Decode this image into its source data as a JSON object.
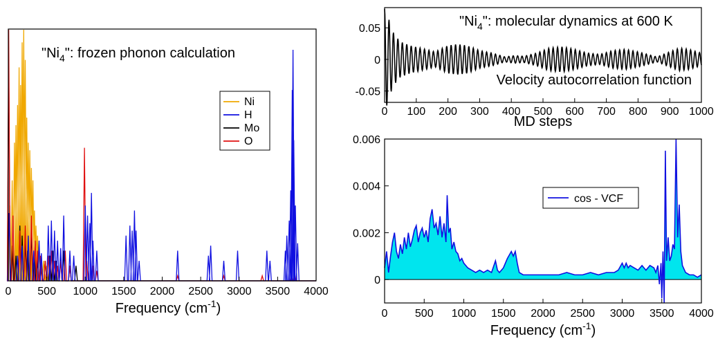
{
  "chart_data": [
    {
      "type": "line",
      "panel": "left",
      "title": "\"Ni4\": frozen phonon calculation",
      "title_parts": {
        "pre": "\"Ni",
        "sub": "4",
        "post": "\": frozen phonon calculation"
      },
      "xlabel": "Frequency (cm-1)",
      "xlabel_parts": {
        "pre": "Frequency (cm",
        "sup": "-1",
        "post": ")"
      },
      "ylabel": "",
      "xlim": [
        0,
        4000
      ],
      "ylim": [
        0,
        1
      ],
      "xticks": [
        0,
        500,
        1000,
        1500,
        2000,
        2500,
        3000,
        3500,
        4000
      ],
      "yticks": [],
      "legend_position": "center-right",
      "series": [
        {
          "name": "Ni",
          "color": "#f0a800",
          "peaks": [
            [
              20,
              0.3
            ],
            [
              50,
              0.4
            ],
            [
              80,
              0.55
            ],
            [
              100,
              0.62
            ],
            [
              120,
              0.7
            ],
            [
              140,
              0.85
            ],
            [
              160,
              0.78
            ],
            [
              180,
              0.95
            ],
            [
              200,
              1.0
            ],
            [
              220,
              0.88
            ],
            [
              240,
              0.65
            ],
            [
              260,
              0.55
            ],
            [
              280,
              0.52
            ],
            [
              300,
              0.45
            ],
            [
              320,
              0.4
            ],
            [
              340,
              0.28
            ],
            [
              360,
              0.22
            ],
            [
              380,
              0.18
            ],
            [
              400,
              0.12
            ],
            [
              430,
              0.1
            ],
            [
              460,
              0.08
            ],
            [
              500,
              0.06
            ]
          ]
        },
        {
          "name": "H",
          "color": "#1010e0",
          "peaks": [
            [
              10,
              0.27
            ],
            [
              120,
              0.1
            ],
            [
              180,
              0.14
            ],
            [
              260,
              0.18
            ],
            [
              330,
              0.12
            ],
            [
              400,
              0.16
            ],
            [
              430,
              0.11
            ],
            [
              520,
              0.22
            ],
            [
              560,
              0.24
            ],
            [
              600,
              0.2
            ],
            [
              640,
              0.16
            ],
            [
              680,
              0.13
            ],
            [
              720,
              0.26
            ],
            [
              800,
              0.12
            ],
            [
              850,
              0.1
            ],
            [
              1000,
              0.3
            ],
            [
              1030,
              0.26
            ],
            [
              1060,
              0.23
            ],
            [
              1080,
              0.35
            ],
            [
              1100,
              0.16
            ],
            [
              1150,
              0.12
            ],
            [
              1530,
              0.18
            ],
            [
              1580,
              0.22
            ],
            [
              1610,
              0.2
            ],
            [
              1640,
              0.28
            ],
            [
              1660,
              0.2
            ],
            [
              1700,
              0.08
            ],
            [
              2200,
              0.12
            ],
            [
              2600,
              0.1
            ],
            [
              2630,
              0.14
            ],
            [
              2800,
              0.08
            ],
            [
              2980,
              0.12
            ],
            [
              3360,
              0.12
            ],
            [
              3400,
              0.08
            ],
            [
              3600,
              0.12
            ],
            [
              3620,
              0.18
            ],
            [
              3650,
              0.24
            ],
            [
              3670,
              0.36
            ],
            [
              3690,
              0.76
            ],
            [
              3700,
              0.92
            ],
            [
              3710,
              0.56
            ],
            [
              3730,
              0.3
            ],
            [
              3760,
              0.15
            ]
          ]
        },
        {
          "name": "Mo",
          "color": "#000000",
          "peaks": [
            [
              5,
              0.88
            ],
            [
              50,
              0.14
            ],
            [
              100,
              0.1
            ],
            [
              150,
              0.22
            ],
            [
              180,
              0.18
            ],
            [
              220,
              0.16
            ],
            [
              250,
              0.12
            ],
            [
              300,
              0.2
            ],
            [
              340,
              0.1
            ],
            [
              380,
              0.08
            ],
            [
              430,
              0.06
            ],
            [
              480,
              0.08
            ],
            [
              540,
              0.1
            ],
            [
              580,
              0.12
            ],
            [
              620,
              0.08
            ],
            [
              680,
              0.1
            ],
            [
              720,
              0.12
            ],
            [
              800,
              0.06
            ],
            [
              880,
              0.06
            ]
          ]
        },
        {
          "name": "O",
          "color": "#e01010",
          "peaks": [
            [
              5,
              1.0
            ],
            [
              60,
              0.26
            ],
            [
              150,
              0.2
            ],
            [
              220,
              0.22
            ],
            [
              300,
              0.26
            ],
            [
              350,
              0.16
            ],
            [
              380,
              0.12
            ],
            [
              420,
              0.1
            ],
            [
              480,
              0.08
            ],
            [
              520,
              0.1
            ],
            [
              560,
              0.12
            ],
            [
              600,
              0.08
            ],
            [
              640,
              0.06
            ],
            [
              680,
              0.08
            ],
            [
              740,
              0.12
            ],
            [
              800,
              0.06
            ],
            [
              990,
              0.53
            ],
            [
              1020,
              0.08
            ],
            [
              1100,
              0.06
            ],
            [
              1150,
              0.04
            ],
            [
              2200,
              0.02
            ],
            [
              2800,
              0.02
            ],
            [
              3300,
              0.02
            ],
            [
              3680,
              0.03
            ],
            [
              3720,
              0.03
            ]
          ]
        }
      ],
      "legend_entries": [
        "Ni",
        "H",
        "Mo",
        "O"
      ]
    },
    {
      "type": "line",
      "panel": "top-right",
      "title": "\"Ni4\": molecular dynamics at 600 K",
      "title_parts": {
        "pre": "\"Ni",
        "sub": "4",
        "post": "\": molecular dynamics at 600 K"
      },
      "annotation": "Velocity autocorrelation function",
      "xlabel": "MD steps",
      "ylabel": "",
      "xlim": [
        0,
        1000
      ],
      "ylim": [
        -0.068,
        0.082
      ],
      "xticks": [
        0,
        100,
        200,
        300,
        400,
        500,
        600,
        700,
        800,
        900,
        1000
      ],
      "yticks": [
        -0.05,
        0,
        0.05
      ],
      "ytick_labels": [
        "-0.05",
        "0",
        "0.05"
      ],
      "series": [
        {
          "name": "",
          "color": "#000000",
          "envelope": [
            [
              0,
              0.08
            ],
            [
              10,
              0.07
            ],
            [
              20,
              0.052
            ],
            [
              30,
              0.04
            ],
            [
              50,
              0.028
            ],
            [
              80,
              0.022
            ],
            [
              120,
              0.017
            ],
            [
              160,
              0.012
            ],
            [
              200,
              0.022
            ],
            [
              230,
              0.024
            ],
            [
              260,
              0.022
            ],
            [
              300,
              0.014
            ],
            [
              340,
              0.01
            ],
            [
              380,
              0.004
            ],
            [
              410,
              0.006
            ],
            [
              440,
              0.005
            ],
            [
              480,
              0.01
            ],
            [
              520,
              0.018
            ],
            [
              560,
              0.02
            ],
            [
              600,
              0.016
            ],
            [
              640,
              0.01
            ],
            [
              680,
              0.008
            ],
            [
              720,
              0.014
            ],
            [
              760,
              0.016
            ],
            [
              800,
              0.012
            ],
            [
              830,
              0.008
            ],
            [
              860,
              0.004
            ],
            [
              890,
              0.01
            ],
            [
              930,
              0.018
            ],
            [
              960,
              0.016
            ],
            [
              1000,
              0.01
            ]
          ],
          "period_steps": 14
        }
      ]
    },
    {
      "type": "area",
      "panel": "bottom-right",
      "title": "",
      "xlabel": "Frequency (cm-1)",
      "xlabel_parts": {
        "pre": "Frequency (cm",
        "sup": "-1",
        "post": ")"
      },
      "ylabel": "",
      "xlim": [
        0,
        4000
      ],
      "ylim": [
        -0.001,
        0.006
      ],
      "xticks": [
        0,
        500,
        1000,
        1500,
        2000,
        2500,
        3000,
        3500,
        4000
      ],
      "yticks": [
        0,
        0.002,
        0.004,
        0.006
      ],
      "ytick_labels": [
        "0",
        "0.002",
        "0.004",
        "0.006"
      ],
      "legend_position": "center",
      "fill_color": "#00e5ee",
      "series": [
        {
          "name": "cos - VCF",
          "color": "#1010e0",
          "points": [
            [
              0,
              0.0005
            ],
            [
              25,
              0.0012
            ],
            [
              50,
              0.0003
            ],
            [
              75,
              0.001
            ],
            [
              100,
              0.0016
            ],
            [
              125,
              0.002
            ],
            [
              150,
              0.0012
            ],
            [
              175,
              0.0009
            ],
            [
              200,
              0.0015
            ],
            [
              225,
              0.0011
            ],
            [
              250,
              0.0018
            ],
            [
              275,
              0.0013
            ],
            [
              300,
              0.002
            ],
            [
              325,
              0.0014
            ],
            [
              350,
              0.0017
            ],
            [
              375,
              0.0021
            ],
            [
              400,
              0.0023
            ],
            [
              425,
              0.0016
            ],
            [
              450,
              0.002
            ],
            [
              475,
              0.0022
            ],
            [
              500,
              0.0018
            ],
            [
              525,
              0.0021
            ],
            [
              550,
              0.0016
            ],
            [
              575,
              0.0026
            ],
            [
              600,
              0.003
            ],
            [
              625,
              0.0022
            ],
            [
              650,
              0.0024
            ],
            [
              675,
              0.0019
            ],
            [
              700,
              0.0027
            ],
            [
              725,
              0.0018
            ],
            [
              750,
              0.0024
            ],
            [
              775,
              0.0016
            ],
            [
              790,
              0.0036
            ],
            [
              810,
              0.002
            ],
            [
              830,
              0.0022
            ],
            [
              850,
              0.0013
            ],
            [
              875,
              0.0016
            ],
            [
              900,
              0.0012
            ],
            [
              925,
              0.0011
            ],
            [
              950,
              0.0008
            ],
            [
              975,
              0.0009
            ],
            [
              1000,
              0.0007
            ],
            [
              1050,
              0.0005
            ],
            [
              1100,
              0.0004
            ],
            [
              1150,
              0.0003
            ],
            [
              1200,
              0.0004
            ],
            [
              1250,
              0.0003
            ],
            [
              1300,
              0.0004
            ],
            [
              1350,
              0.0003
            ],
            [
              1400,
              0.0008
            ],
            [
              1425,
              0.0004
            ],
            [
              1450,
              0.0003
            ],
            [
              1500,
              0.0005
            ],
            [
              1550,
              0.0009
            ],
            [
              1600,
              0.0012
            ],
            [
              1625,
              0.001
            ],
            [
              1650,
              0.0012
            ],
            [
              1675,
              0.0007
            ],
            [
              1700,
              0.0003
            ],
            [
              1750,
              0.0002
            ],
            [
              1800,
              0.0002
            ],
            [
              1900,
              0.0002
            ],
            [
              2000,
              0.0002
            ],
            [
              2100,
              0.0002
            ],
            [
              2200,
              0.0002
            ],
            [
              2300,
              0.0003
            ],
            [
              2400,
              0.0002
            ],
            [
              2500,
              0.0002
            ],
            [
              2600,
              0.0003
            ],
            [
              2700,
              0.0002
            ],
            [
              2800,
              0.0003
            ],
            [
              2900,
              0.0003
            ],
            [
              2950,
              0.0004
            ],
            [
              3000,
              0.0007
            ],
            [
              3025,
              0.0005
            ],
            [
              3050,
              0.0007
            ],
            [
              3075,
              0.0005
            ],
            [
              3100,
              0.0006
            ],
            [
              3150,
              0.0005
            ],
            [
              3200,
              0.0004
            ],
            [
              3250,
              0.0006
            ],
            [
              3300,
              0.0004
            ],
            [
              3350,
              0.0006
            ],
            [
              3400,
              0.0005
            ],
            [
              3425,
              0.0003
            ],
            [
              3450,
              0.0006
            ],
            [
              3470,
              -0.0002
            ],
            [
              3490,
              0.0007
            ],
            [
              3500,
              -0.0008
            ],
            [
              3515,
              0.0012
            ],
            [
              3530,
              -0.001
            ],
            [
              3545,
              0.0055
            ],
            [
              3560,
              0.0008
            ],
            [
              3580,
              0.0018
            ],
            [
              3600,
              0.0008
            ],
            [
              3620,
              0.001
            ],
            [
              3640,
              0.0015
            ],
            [
              3660,
              0.0013
            ],
            [
              3680,
              0.006
            ],
            [
              3700,
              0.0018
            ],
            [
              3720,
              0.0032
            ],
            [
              3740,
              0.0012
            ],
            [
              3760,
              0.0006
            ],
            [
              3800,
              0.0003
            ],
            [
              3850,
              0.0002
            ],
            [
              3900,
              0.0002
            ],
            [
              3950,
              0.0001
            ],
            [
              4000,
              0.0002
            ]
          ]
        }
      ]
    }
  ]
}
